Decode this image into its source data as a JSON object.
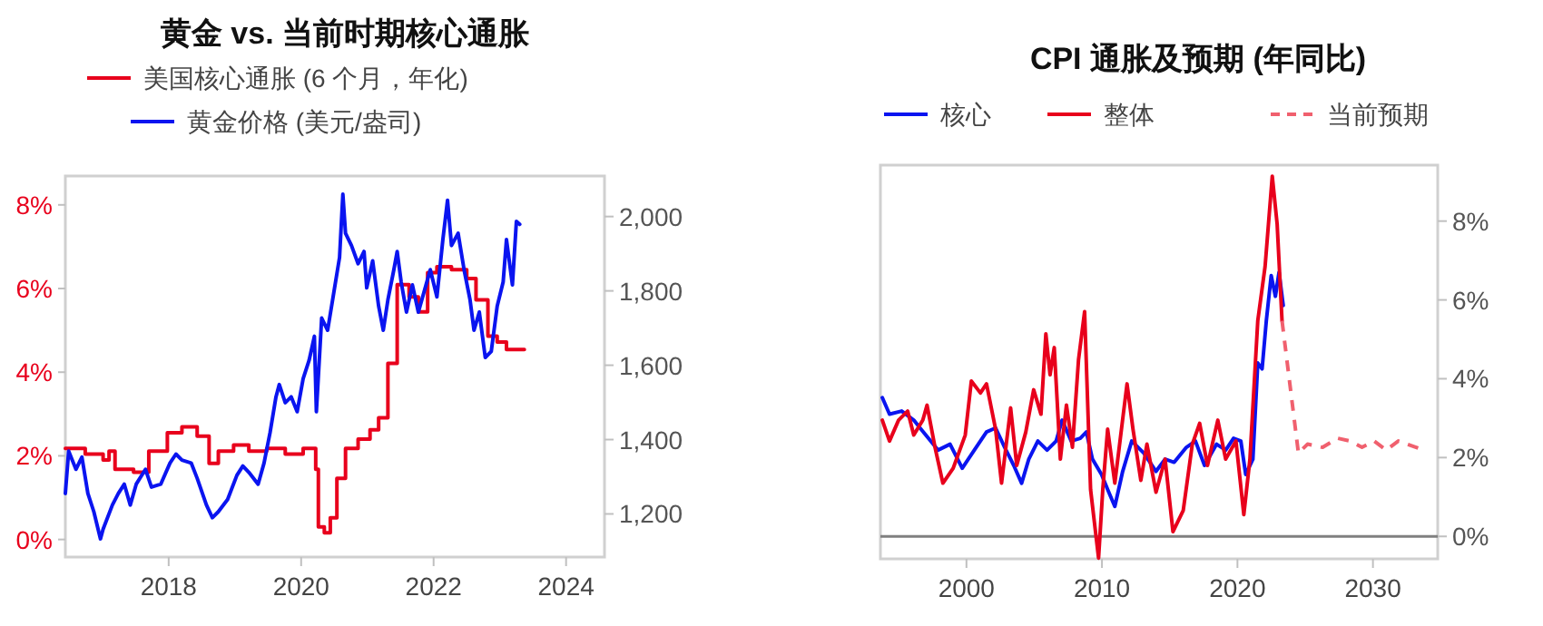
{
  "chart_data": [
    {
      "type": "line",
      "title": "黄金 vs. 当前时期核心通胀",
      "legend": "top",
      "xlim": [
        2016.44,
        2024.58
      ],
      "xticks": [
        2018,
        2020,
        2022,
        2024
      ],
      "ylim": [
        -0.42,
        8.69
      ],
      "yticks": [
        {
          "value": 0,
          "label": "0%"
        },
        {
          "value": 2,
          "label": "2%"
        },
        {
          "value": 4,
          "label": "4%"
        },
        {
          "value": 6,
          "label": "6%"
        },
        {
          "value": 8,
          "label": "8%"
        }
      ],
      "y2lim": [
        1084,
        2109
      ],
      "y2ticks": [
        {
          "value": 1200,
          "label": "1,200"
        },
        {
          "value": 1400,
          "label": "1,400"
        },
        {
          "value": 1600,
          "label": "1,600"
        },
        {
          "value": 1800,
          "label": "1,800"
        },
        {
          "value": 2000,
          "label": "2,000"
        }
      ],
      "series": [
        {
          "name": "美国核心通胀 (6 个月，年化)",
          "type": "step",
          "color": "#e8001c",
          "x": [
            2016.44,
            2016.74,
            2017.01,
            2017.1,
            2017.19,
            2017.47,
            2017.7,
            2017.98,
            2018.2,
            2018.43,
            2018.61,
            2018.75,
            2018.98,
            2019.21,
            2019.48,
            2019.76,
            2020.03,
            2020.22,
            2020.26,
            2020.35,
            2020.44,
            2020.54,
            2020.67,
            2020.86,
            2021.04,
            2021.17,
            2021.31,
            2021.45,
            2021.63,
            2021.77,
            2021.91,
            2022.05,
            2022.27,
            2022.5,
            2022.64,
            2022.82,
            2022.96,
            2023.1,
            2023.37
          ],
          "values": [
            2.18,
            2.04,
            1.9,
            2.11,
            1.68,
            1.61,
            2.11,
            2.55,
            2.69,
            2.47,
            1.82,
            2.11,
            2.26,
            2.11,
            2.18,
            2.04,
            2.18,
            1.68,
            0.3,
            0.16,
            0.52,
            1.46,
            2.18,
            2.4,
            2.62,
            2.91,
            4.21,
            6.09,
            5.8,
            5.44,
            6.38,
            6.52,
            6.45,
            6.24,
            5.73,
            4.86,
            4.72,
            4.54,
            4.54
          ]
        },
        {
          "name": "黄金价格 (美元/盎司)",
          "axis": "y2",
          "color": "#0a14f0",
          "x": [
            2016.44,
            2016.49,
            2016.6,
            2016.69,
            2016.78,
            2016.87,
            2016.97,
            2017.01,
            2017.15,
            2017.24,
            2017.33,
            2017.42,
            2017.51,
            2017.65,
            2017.74,
            2017.88,
            2018.02,
            2018.11,
            2018.2,
            2018.34,
            2018.43,
            2018.57,
            2018.66,
            2018.75,
            2018.89,
            2019.03,
            2019.12,
            2019.21,
            2019.35,
            2019.44,
            2019.53,
            2019.62,
            2019.67,
            2019.76,
            2019.85,
            2019.94,
            2020.03,
            2020.12,
            2020.2,
            2020.23,
            2020.31,
            2020.4,
            2020.49,
            2020.58,
            2020.63,
            2020.67,
            2020.76,
            2020.86,
            2020.95,
            2020.99,
            2021.08,
            2021.17,
            2021.24,
            2021.31,
            2021.4,
            2021.45,
            2021.51,
            2021.59,
            2021.68,
            2021.77,
            2021.86,
            2021.95,
            2022.05,
            2022.14,
            2022.21,
            2022.27,
            2022.37,
            2022.46,
            2022.55,
            2022.61,
            2022.69,
            2022.78,
            2022.87,
            2022.96,
            2023.05,
            2023.1,
            2023.19,
            2023.25,
            2023.3
          ],
          "values": [
            1255,
            1369,
            1320,
            1353,
            1255,
            1206,
            1133,
            1159,
            1224,
            1255,
            1280,
            1224,
            1280,
            1320,
            1272,
            1280,
            1337,
            1361,
            1345,
            1337,
            1296,
            1224,
            1190,
            1206,
            1239,
            1304,
            1329,
            1312,
            1280,
            1337,
            1418,
            1515,
            1548,
            1499,
            1515,
            1475,
            1564,
            1613,
            1678,
            1475,
            1727,
            1694,
            1792,
            1890,
            2060,
            1955,
            1922,
            1873,
            1906,
            1808,
            1881,
            1759,
            1694,
            1776,
            1857,
            1906,
            1824,
            1743,
            1816,
            1743,
            1800,
            1857,
            1784,
            1938,
            2044,
            1922,
            1955,
            1857,
            1776,
            1694,
            1743,
            1621,
            1637,
            1759,
            1824,
            1938,
            1816,
            1987,
            1979
          ]
        }
      ]
    },
    {
      "type": "line",
      "title": "CPI 通胀及预期 (年同比)",
      "legend": "top",
      "xlim": [
        1993.65,
        2034.78
      ],
      "xticks": [
        2000,
        2010,
        2020,
        2030
      ],
      "y2lim": [
        -0.57,
        9.42
      ],
      "y2ticks": [
        {
          "value": 0,
          "label": "0%"
        },
        {
          "value": 2,
          "label": "2%"
        },
        {
          "value": 4,
          "label": "4%"
        },
        {
          "value": 6,
          "label": "6%"
        },
        {
          "value": 8,
          "label": "8%"
        }
      ],
      "ref_lines": [
        {
          "axis": "y2",
          "value": 0,
          "color": "#808080"
        }
      ],
      "series": [
        {
          "name": "核心",
          "axis": "y2",
          "color": "#0a14f0",
          "x": [
            1993.79,
            1994.32,
            1995.22,
            1996.11,
            1997.0,
            1997.9,
            1998.79,
            1999.69,
            2000.58,
            2001.48,
            2002.15,
            2002.82,
            2003.49,
            2004.07,
            2004.6,
            2005.27,
            2005.95,
            2006.62,
            2007.06,
            2007.73,
            2008.4,
            2008.85,
            2009.3,
            2009.97,
            2010.42,
            2010.95,
            2011.53,
            2012.2,
            2013.1,
            2013.99,
            2014.66,
            2015.33,
            2016.23,
            2016.9,
            2017.57,
            2018.46,
            2019.13,
            2019.71,
            2020.25,
            2020.61,
            2021.14,
            2021.5,
            2021.82,
            2022.13,
            2022.49,
            2022.8,
            2023.07,
            2023.38
          ],
          "values": [
            3.52,
            3.1,
            3.18,
            2.95,
            2.57,
            2.19,
            2.34,
            1.73,
            2.19,
            2.65,
            2.75,
            2.26,
            1.8,
            1.35,
            1.96,
            2.42,
            2.19,
            2.42,
            2.95,
            2.42,
            2.49,
            2.65,
            1.96,
            1.57,
            1.19,
            0.76,
            1.65,
            2.42,
            2.11,
            1.65,
            1.96,
            1.88,
            2.26,
            2.42,
            1.8,
            2.34,
            2.19,
            2.49,
            2.42,
            1.57,
            1.96,
            4.4,
            4.25,
            5.47,
            6.62,
            6.09,
            6.7,
            5.86
          ]
        },
        {
          "name": "整体",
          "axis": "y2",
          "color": "#e8001c",
          "x": [
            1993.79,
            1994.32,
            1994.99,
            1995.66,
            1996.11,
            1996.78,
            1997.09,
            1997.68,
            1998.26,
            1999.02,
            1999.91,
            2000.36,
            2001.03,
            2001.48,
            2002.15,
            2002.59,
            2003.26,
            2003.71,
            2004.38,
            2004.96,
            2005.5,
            2005.86,
            2006.17,
            2006.48,
            2006.93,
            2007.38,
            2007.82,
            2008.27,
            2008.72,
            2009.16,
            2009.75,
            2010.06,
            2010.42,
            2010.95,
            2011.85,
            2012.29,
            2012.87,
            2013.32,
            2013.99,
            2014.66,
            2015.24,
            2016.0,
            2016.67,
            2017.21,
            2017.79,
            2018.55,
            2019.13,
            2019.89,
            2020.47,
            2020.92,
            2021.5,
            2022.04,
            2022.57,
            2022.93,
            2023.29
          ],
          "values": [
            2.95,
            2.42,
            2.95,
            3.18,
            2.57,
            2.95,
            3.33,
            2.26,
            1.35,
            1.73,
            2.57,
            3.94,
            3.64,
            3.87,
            2.72,
            1.35,
            3.26,
            1.8,
            2.65,
            3.72,
            3.1,
            5.14,
            4.1,
            4.79,
            1.96,
            3.33,
            2.26,
            4.48,
            5.7,
            1.19,
            -0.55,
            1.19,
            2.72,
            1.35,
            3.87,
            2.72,
            1.42,
            2.34,
            1.12,
            1.96,
            0.12,
            0.66,
            2.34,
            2.87,
            1.8,
            2.95,
            1.96,
            2.42,
            0.55,
            1.96,
            5.47,
            6.85,
            9.14,
            7.92,
            5.47
          ]
        },
        {
          "name": "当前预期",
          "axis": "y2",
          "color": "#f0606e",
          "line_style": "dashed",
          "x": [
            2023.29,
            2024.5,
            2025.17,
            2026.29,
            2027.4,
            2028.3,
            2029.19,
            2030.09,
            2030.98,
            2031.87,
            2032.54,
            2033.44
          ],
          "values": [
            5.47,
            2.11,
            2.34,
            2.26,
            2.49,
            2.42,
            2.26,
            2.42,
            2.19,
            2.42,
            2.34,
            2.23
          ]
        }
      ]
    }
  ]
}
